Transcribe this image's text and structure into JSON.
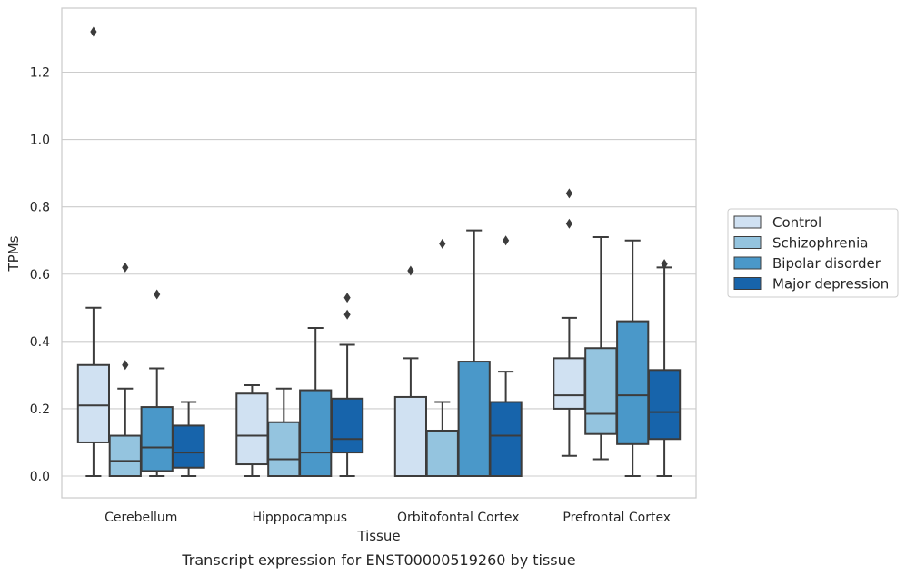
{
  "chart_data": {
    "type": "boxplot",
    "title": "",
    "caption": "Transcript expression for ENST00000519260 by tissue",
    "xlabel": "Tissue",
    "ylabel": "TPMs",
    "ylim": [
      -0.065,
      1.395
    ],
    "yticks": [
      0.0,
      0.2,
      0.4,
      0.6,
      0.8,
      1.0,
      1.2
    ],
    "yticklabels": [
      "0.0",
      "0.2",
      "0.4",
      "0.6",
      "0.8",
      "1.0",
      "1.2"
    ],
    "grid": "horizontal",
    "legend_position": "right",
    "categories": [
      "Cerebellum",
      "Hipppocampus",
      "Orbitofontal Cortex",
      "Prefrontal Cortex"
    ],
    "series": [
      {
        "name": "Control",
        "color": "#d0e1f2",
        "boxes": [
          {
            "min": 0.0,
            "q1": 0.1,
            "median": 0.21,
            "q3": 0.33,
            "max": 0.5,
            "outliers": [
              1.32
            ]
          },
          {
            "min": 0.0,
            "q1": 0.035,
            "median": 0.12,
            "q3": 0.245,
            "max": 0.27,
            "outliers": []
          },
          {
            "min": 0.0,
            "q1": 0.0,
            "median": 0.0,
            "q3": 0.235,
            "max": 0.35,
            "outliers": [
              0.61
            ]
          },
          {
            "min": 0.06,
            "q1": 0.2,
            "median": 0.24,
            "q3": 0.35,
            "max": 0.47,
            "outliers": [
              0.75,
              0.84
            ]
          }
        ]
      },
      {
        "name": "Schizophrenia",
        "color": "#94c4df",
        "boxes": [
          {
            "min": 0.0,
            "q1": 0.0,
            "median": 0.045,
            "q3": 0.12,
            "max": 0.26,
            "outliers": [
              0.33,
              0.62
            ]
          },
          {
            "min": 0.0,
            "q1": 0.0,
            "median": 0.05,
            "q3": 0.16,
            "max": 0.26,
            "outliers": []
          },
          {
            "min": 0.0,
            "q1": 0.0,
            "median": 0.0,
            "q3": 0.135,
            "max": 0.22,
            "outliers": [
              0.69
            ]
          },
          {
            "min": 0.05,
            "q1": 0.125,
            "median": 0.185,
            "q3": 0.38,
            "max": 0.71,
            "outliers": []
          }
        ]
      },
      {
        "name": "Bipolar disorder",
        "color": "#4a98c9",
        "boxes": [
          {
            "min": 0.0,
            "q1": 0.015,
            "median": 0.085,
            "q3": 0.205,
            "max": 0.32,
            "outliers": [
              0.54
            ]
          },
          {
            "min": 0.0,
            "q1": 0.0,
            "median": 0.07,
            "q3": 0.255,
            "max": 0.44,
            "outliers": []
          },
          {
            "min": 0.0,
            "q1": 0.0,
            "median": 0.0,
            "q3": 0.34,
            "max": 0.73,
            "outliers": []
          },
          {
            "min": 0.0,
            "q1": 0.095,
            "median": 0.24,
            "q3": 0.46,
            "max": 0.7,
            "outliers": []
          }
        ]
      },
      {
        "name": "Major depression",
        "color": "#1764ab",
        "boxes": [
          {
            "min": 0.0,
            "q1": 0.025,
            "median": 0.07,
            "q3": 0.15,
            "max": 0.22,
            "outliers": []
          },
          {
            "min": 0.0,
            "q1": 0.07,
            "median": 0.11,
            "q3": 0.23,
            "max": 0.39,
            "outliers": [
              0.48,
              0.53
            ]
          },
          {
            "min": 0.0,
            "q1": 0.0,
            "median": 0.12,
            "q3": 0.22,
            "max": 0.31,
            "outliers": [
              0.7
            ]
          },
          {
            "min": 0.0,
            "q1": 0.11,
            "median": 0.19,
            "q3": 0.315,
            "max": 0.62,
            "outliers": [
              0.63
            ]
          }
        ]
      }
    ]
  }
}
